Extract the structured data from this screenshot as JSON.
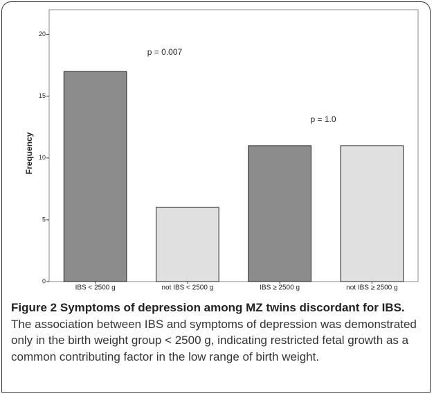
{
  "chart_data": {
    "type": "bar",
    "ylabel": "Frequency",
    "categories": [
      "IBS < 2500 g",
      "not IBS < 2500 g",
      "IBS ≥ 2500 g",
      "not IBS ≥ 2500 g"
    ],
    "values": [
      17,
      6,
      11,
      11
    ],
    "colors": [
      "#8c8c8c",
      "#e0e0e0",
      "#8c8c8c",
      "#e0e0e0"
    ],
    "ylim": [
      0,
      22
    ],
    "yticks": [
      0,
      5,
      10,
      15,
      20
    ],
    "grid": false,
    "annotations": [
      "p = 0.007",
      "p = 1.0"
    ]
  },
  "caption": {
    "label": "Figure 2",
    "title": "Symptoms of depression among MZ twins discordant for IBS.",
    "text": "The association between IBS and symptoms of depression was demonstrated only in the birth weight group < 2500 g, indicating restricted fetal growth as a common contributing factor in the low range of birth weight."
  }
}
